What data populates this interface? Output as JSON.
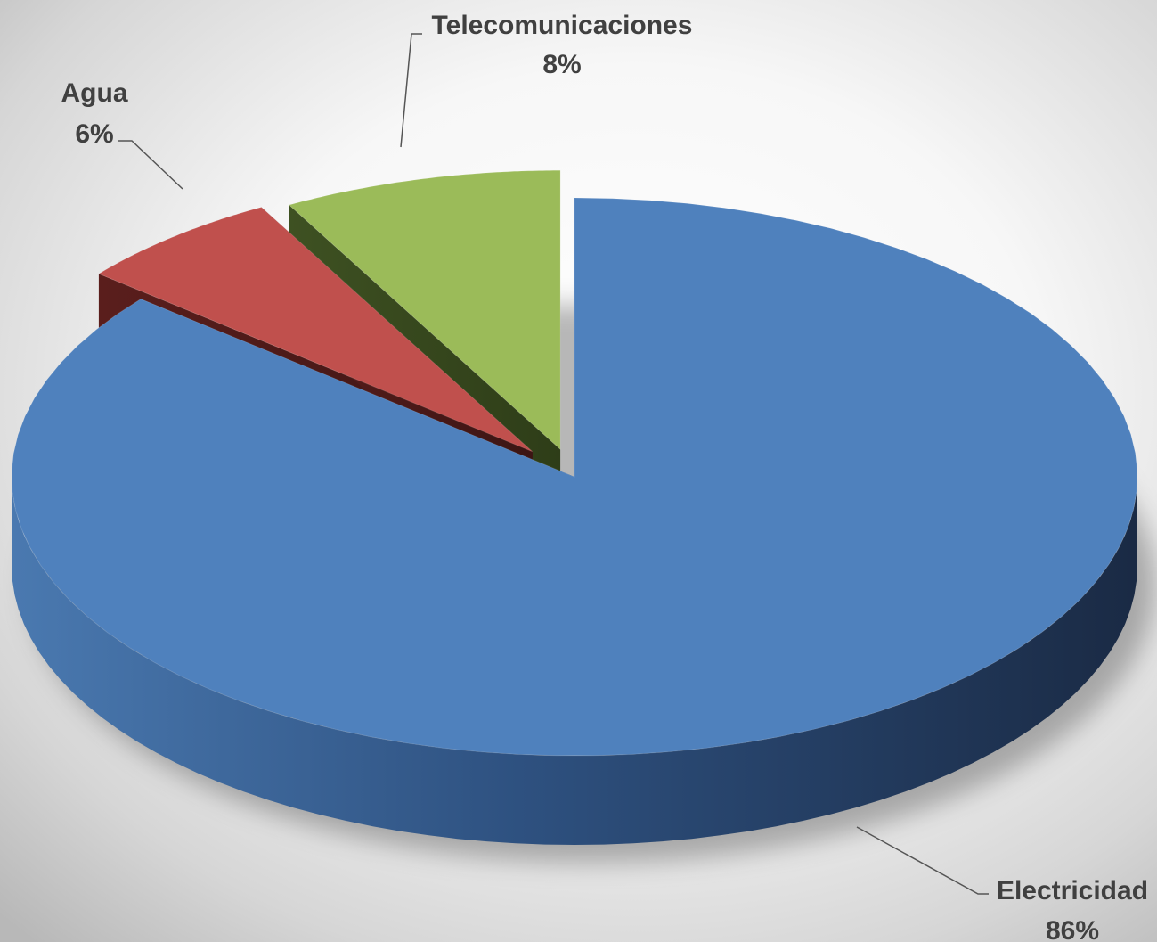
{
  "chart_data": {
    "type": "pie",
    "title": "",
    "three_d": true,
    "exploded": true,
    "slices": [
      {
        "category": "Electricidad",
        "value": 86,
        "label": "86%",
        "color": "#4F81BD"
      },
      {
        "category": "Agua",
        "value": 6,
        "label": "6%",
        "color": "#C0504D"
      },
      {
        "category": "Telecomunicaciones",
        "value": 8,
        "label": "8%",
        "color": "#9BBB59"
      }
    ]
  }
}
